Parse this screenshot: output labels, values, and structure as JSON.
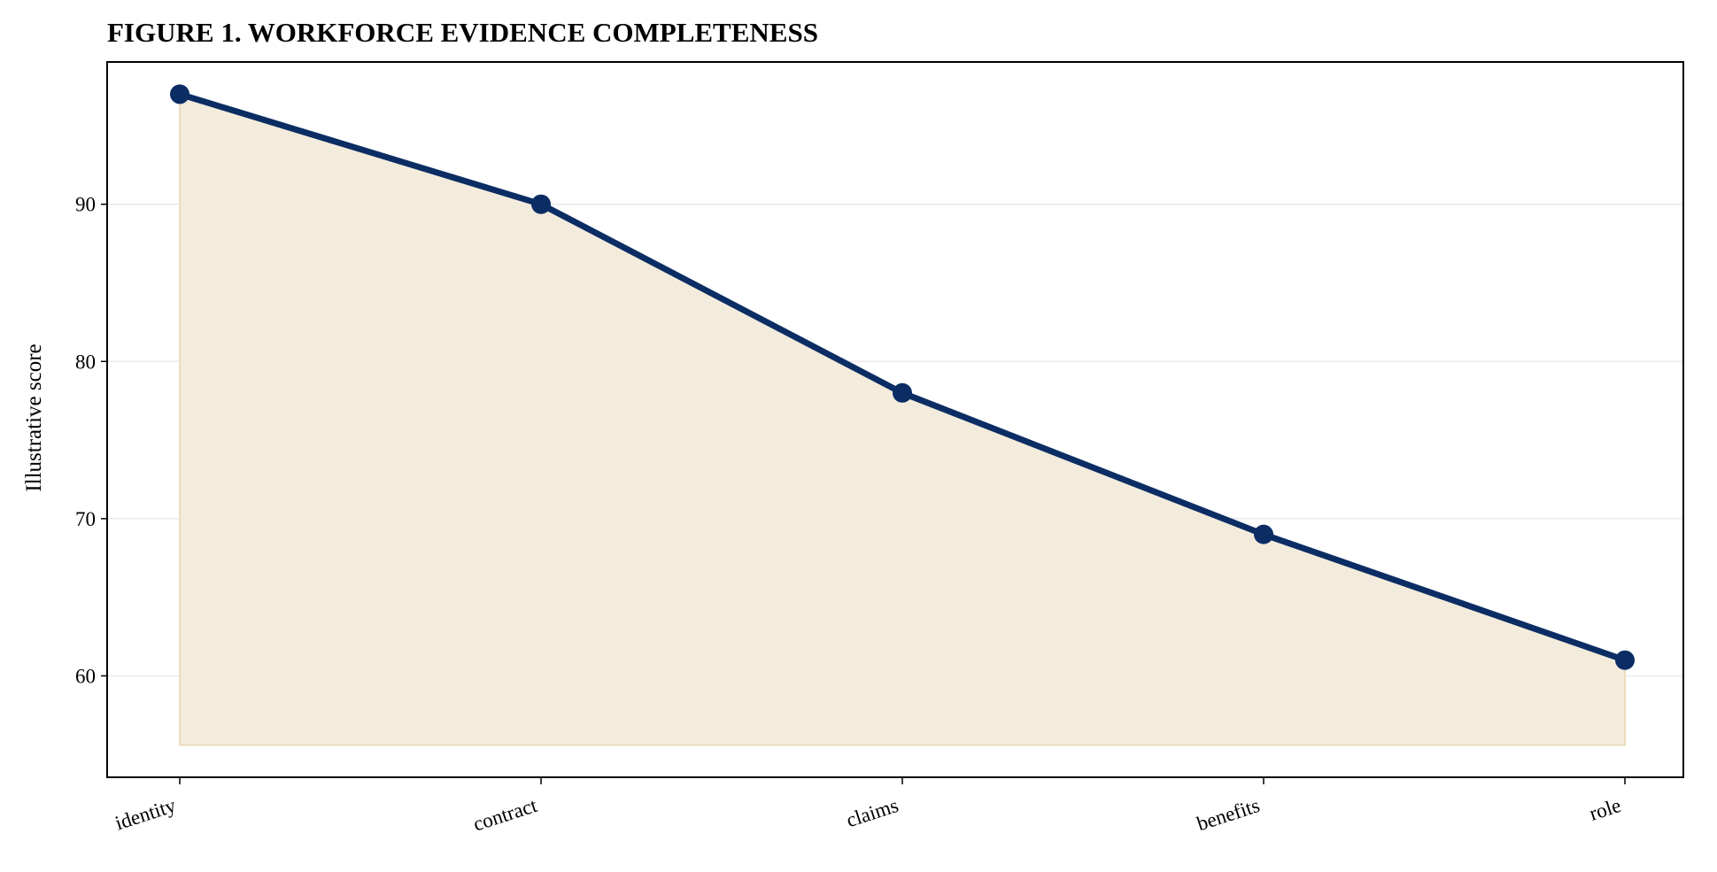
{
  "chart_data": {
    "type": "area",
    "title": "FIGURE 1. WORKFORCE EVIDENCE COMPLETENESS",
    "xlabel": "",
    "ylabel": "Illustrative score",
    "categories": [
      "identity",
      "contract",
      "claims",
      "benefits",
      "role"
    ],
    "series": [
      {
        "values": [
          97,
          90,
          78,
          69,
          61
        ]
      }
    ],
    "fill_baseline": 55.6,
    "ylim": [
      53.55,
      99.05
    ],
    "yticks": [
      "60",
      "70",
      "80",
      "90"
    ],
    "grid": "horizontal",
    "legend": "none",
    "colors": {
      "line": "#0b2d64",
      "fill": "#f3ebdc",
      "fill_edge": "#ecdcbd",
      "grid": "#e9e9e9",
      "axes": "#000000"
    }
  }
}
